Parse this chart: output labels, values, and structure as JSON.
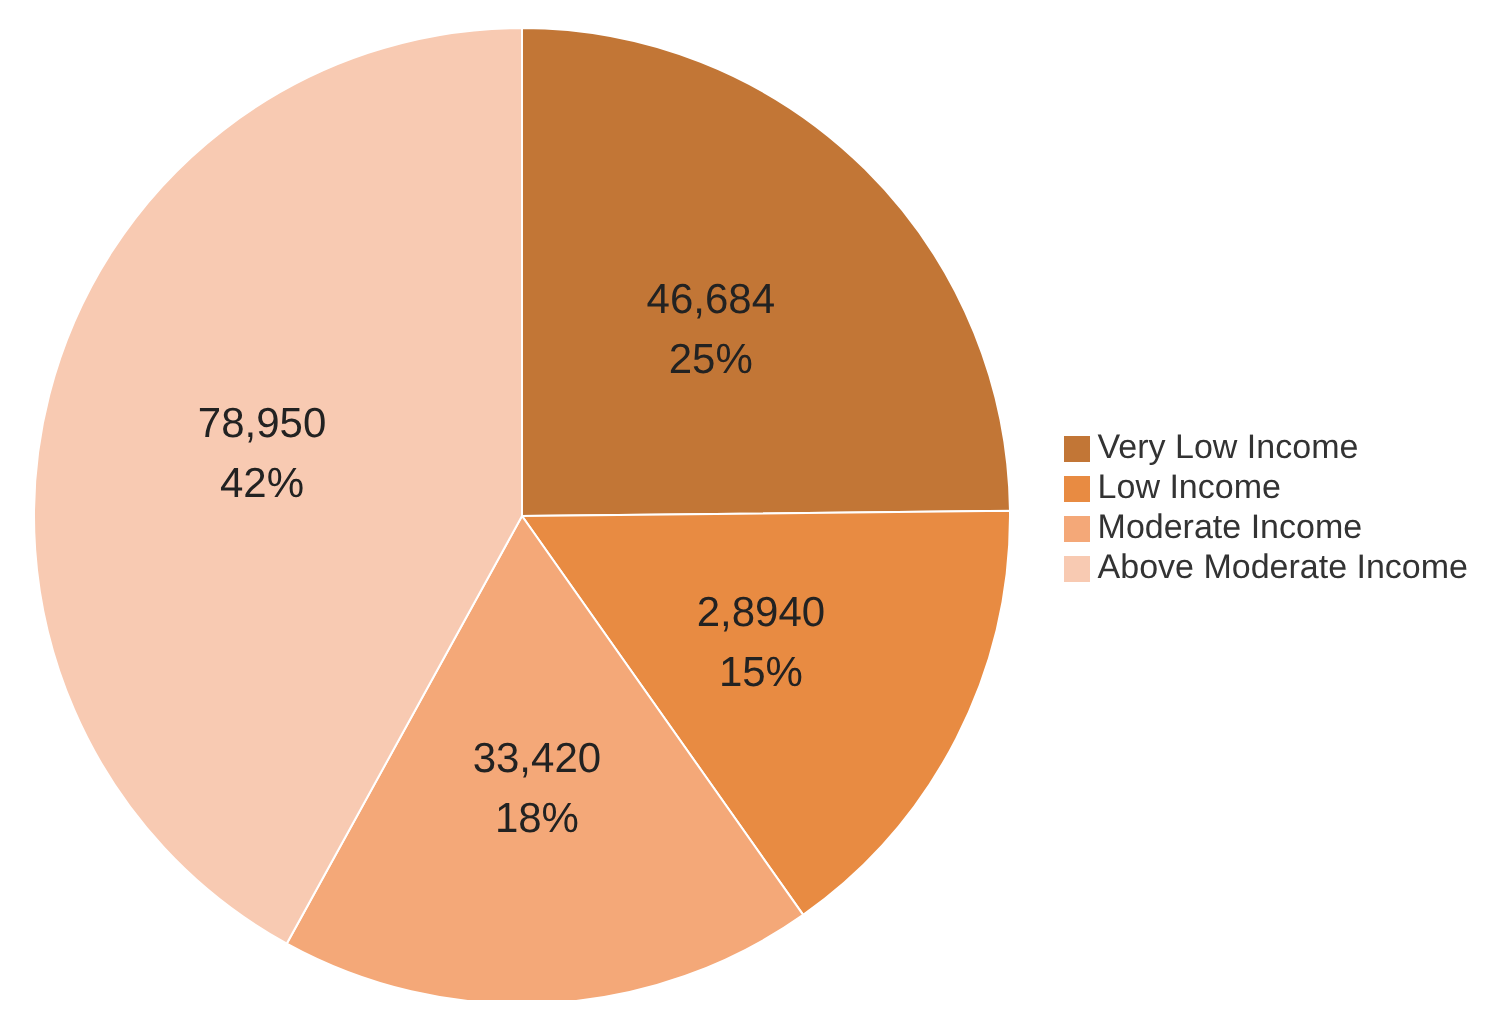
{
  "chart_data": {
    "type": "pie",
    "categories": [
      "Very Low Income",
      "Low Income",
      "Moderate Income",
      "Above Moderate Income"
    ],
    "values": [
      46684,
      28940,
      33420,
      78950
    ],
    "value_labels": [
      "46,684\n25%",
      "2,8940\n15%",
      "33,420\n18%",
      "78,950\n42%"
    ],
    "colors": [
      "#c27636",
      "#e88b42",
      "#f4a878",
      "#f8cab2"
    ],
    "legend": "right"
  }
}
